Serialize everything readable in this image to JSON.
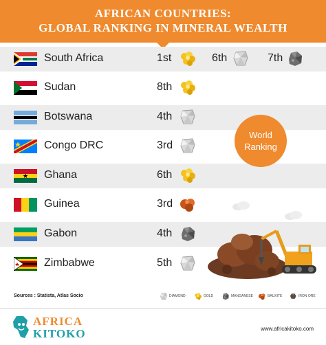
{
  "header": {
    "title_line1": "AFRICAN COUNTRIES:",
    "title_line2": "GLOBAL RANKING IN MINERAL WEALTH"
  },
  "colors": {
    "accent": "#ef8a2e",
    "row_shade": "#ececec",
    "logo_teal": "#1f9fa8"
  },
  "rows": [
    {
      "country": "South Africa",
      "flag": "south-africa-flag",
      "entries": [
        {
          "rank": "1st",
          "mineral": "gold"
        },
        {
          "rank": "6th",
          "mineral": "diamond"
        },
        {
          "rank": "7th",
          "mineral": "manganese"
        }
      ]
    },
    {
      "country": "Sudan",
      "flag": "sudan-flag",
      "entries": [
        {
          "rank": "8th",
          "mineral": "gold"
        }
      ]
    },
    {
      "country": "Botswana",
      "flag": "botswana-flag",
      "entries": [
        {
          "rank": "4th",
          "mineral": "diamond"
        }
      ]
    },
    {
      "country": "Congo DRC",
      "flag": "congo-drc-flag",
      "entries": [
        {
          "rank": "3rd",
          "mineral": "diamond"
        }
      ]
    },
    {
      "country": "Ghana",
      "flag": "ghana-flag",
      "entries": [
        {
          "rank": "6th",
          "mineral": "gold"
        }
      ]
    },
    {
      "country": "Guinea",
      "flag": "guinea-flag",
      "entries": [
        {
          "rank": "3rd",
          "mineral": "bauxite"
        }
      ]
    },
    {
      "country": "Gabon",
      "flag": "gabon-flag",
      "entries": [
        {
          "rank": "4th",
          "mineral": "manganese"
        }
      ]
    },
    {
      "country": "Zimbabwe",
      "flag": "zimbabwe-flag",
      "entries": [
        {
          "rank": "5th",
          "mineral": "diamond"
        }
      ]
    }
  ],
  "badge": {
    "line1": "World",
    "line2": "Ranking"
  },
  "sources": "Sources : Statista, Atlas Socio",
  "legend": [
    {
      "label": "DIAMOND",
      "icon": "diamond-icon"
    },
    {
      "label": "GOLD",
      "icon": "gold-icon"
    },
    {
      "label": "MANGANESE",
      "icon": "manganese-icon"
    },
    {
      "label": "BAUXITE",
      "icon": "bauxite-icon"
    },
    {
      "label": "IRON ORE",
      "icon": "iron-ore-icon"
    }
  ],
  "logo": {
    "line1": "AFRICA",
    "line2": "KITOKO"
  },
  "url": "www.africakitoko.com"
}
